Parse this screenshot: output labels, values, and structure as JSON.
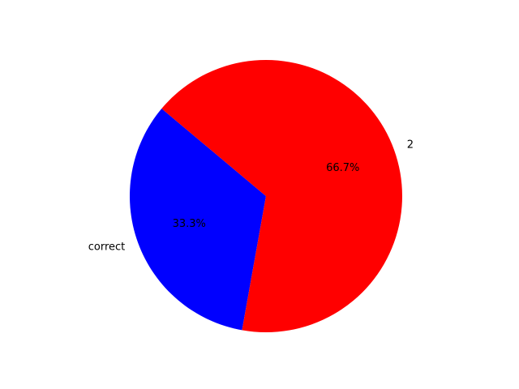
{
  "chart_data": {
    "type": "pie",
    "labels": [
      "correct",
      "2"
    ],
    "values": [
      33.3,
      66.7
    ],
    "percent_labels": [
      "33.3%",
      "66.7%"
    ],
    "colors": [
      "#0000ff",
      "#ff0000"
    ],
    "start_angle_deg": 140,
    "direction": "counterclockwise",
    "title": "",
    "legend": "none"
  }
}
